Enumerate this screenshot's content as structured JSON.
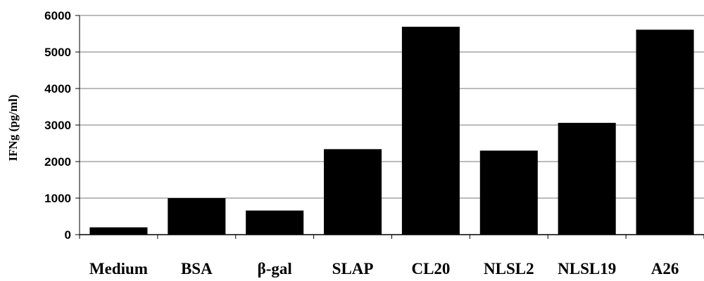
{
  "chart_data": {
    "type": "bar",
    "categories": [
      "Medium",
      "BSA",
      "β-gal",
      "SLAP",
      "CL20",
      "NLSL2",
      "NLSL19",
      "A26"
    ],
    "values": [
      200,
      1000,
      660,
      2340,
      5690,
      2300,
      3060,
      5610
    ],
    "xlabel": "",
    "ylabel": "IFNg (pg/ml)",
    "ylim": [
      0,
      6000
    ],
    "yticks": [
      0,
      1000,
      2000,
      3000,
      4000,
      5000,
      6000
    ],
    "grid": true,
    "legend": "none",
    "colors": {
      "bar": "#000000",
      "grid": "#777777",
      "axis": "#000000"
    }
  }
}
